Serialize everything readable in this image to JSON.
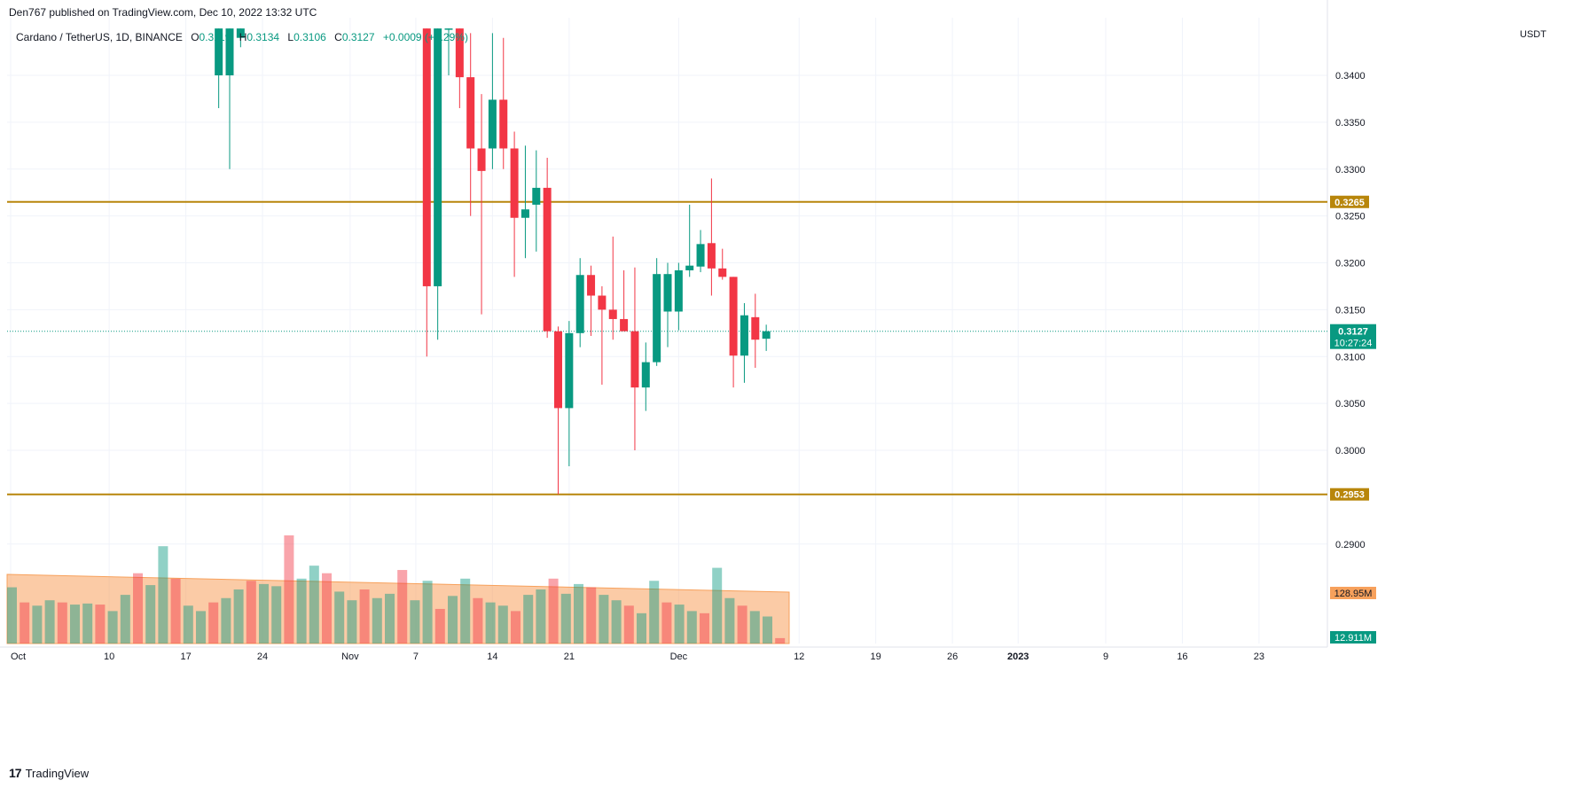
{
  "header": {
    "publisher_text": "Den767 published on TradingView.com, Dec 10, 2022 13:32 UTC"
  },
  "legend": {
    "symbol": "Cardano / TetherUS, 1D, BINANCE",
    "open_label": "O",
    "open": "0.3119",
    "high_label": "H",
    "high": "0.3134",
    "low_label": "L",
    "low": "0.3106",
    "close_label": "C",
    "close": "0.3127",
    "change": "+0.0009 (+0.29%)"
  },
  "footer": {
    "brand": "TradingView"
  },
  "colors": {
    "up": "#089981",
    "down": "#f23645",
    "level": "#b8860b",
    "volume_ma": "#f7a15c",
    "grid": "#f0f3fa",
    "current": "#089981"
  },
  "chart_data": {
    "type": "candlestick",
    "axis_unit": "USDT",
    "y_ticks": [
      "0.3400",
      "0.3350",
      "0.3300",
      "0.3250",
      "0.3200",
      "0.3150",
      "0.3100",
      "0.3050",
      "0.3000",
      "0.2900"
    ],
    "x_ticks": [
      "Oct",
      "10",
      "17",
      "24",
      "Nov",
      "7",
      "14",
      "21",
      "Dec",
      "12",
      "19",
      "26",
      "2023",
      "9",
      "16",
      "23"
    ],
    "ylim": [
      0.285,
      0.344
    ],
    "horizontal_levels": [
      0.3265,
      0.2953
    ],
    "level_labels": [
      "0.3265",
      "0.2953"
    ],
    "current_price": 0.3127,
    "current_price_label": "0.3127",
    "countdown_label": "10:27:24",
    "volume_ma_label": "128.95M",
    "last_volume_label": "12.911M",
    "candles": [
      {
        "date": "2022-10-20",
        "o": 0.34,
        "h": 0.345,
        "l": 0.3365,
        "c": 0.345
      },
      {
        "date": "2022-10-21",
        "o": 0.34,
        "h": 0.345,
        "l": 0.33,
        "c": 0.345
      },
      {
        "date": "2022-10-22",
        "o": 0.344,
        "h": 0.345,
        "l": 0.343,
        "c": 0.345
      },
      {
        "date": "2022-11-08",
        "o": 0.345,
        "h": 0.345,
        "l": 0.31,
        "c": 0.3175
      },
      {
        "date": "2022-11-09",
        "o": 0.3175,
        "h": 0.345,
        "l": 0.3118,
        "c": 0.345
      },
      {
        "date": "2022-11-10",
        "o": 0.345,
        "h": 0.345,
        "l": 0.34,
        "c": 0.345
      },
      {
        "date": "2022-11-11",
        "o": 0.345,
        "h": 0.345,
        "l": 0.3365,
        "c": 0.3398
      },
      {
        "date": "2022-11-12",
        "o": 0.3398,
        "h": 0.3445,
        "l": 0.325,
        "c": 0.3322
      },
      {
        "date": "2022-11-13",
        "o": 0.3322,
        "h": 0.338,
        "l": 0.3145,
        "c": 0.3298
      },
      {
        "date": "2022-11-14",
        "o": 0.3322,
        "h": 0.3445,
        "l": 0.33,
        "c": 0.3374
      },
      {
        "date": "2022-11-15",
        "o": 0.3374,
        "h": 0.344,
        "l": 0.33,
        "c": 0.3322
      },
      {
        "date": "2022-11-16",
        "o": 0.3322,
        "h": 0.334,
        "l": 0.3185,
        "c": 0.3248
      },
      {
        "date": "2022-11-17",
        "o": 0.3248,
        "h": 0.3325,
        "l": 0.3205,
        "c": 0.3257
      },
      {
        "date": "2022-11-18",
        "o": 0.3262,
        "h": 0.332,
        "l": 0.3212,
        "c": 0.328
      },
      {
        "date": "2022-11-19",
        "o": 0.328,
        "h": 0.3312,
        "l": 0.312,
        "c": 0.3127
      },
      {
        "date": "2022-11-20",
        "o": 0.3127,
        "h": 0.3132,
        "l": 0.2953,
        "c": 0.3045
      },
      {
        "date": "2022-11-21",
        "o": 0.3045,
        "h": 0.3138,
        "l": 0.2983,
        "c": 0.3125
      },
      {
        "date": "2022-11-22",
        "o": 0.3125,
        "h": 0.3205,
        "l": 0.311,
        "c": 0.3187
      },
      {
        "date": "2022-11-23",
        "o": 0.3187,
        "h": 0.3197,
        "l": 0.3122,
        "c": 0.3165
      },
      {
        "date": "2022-11-24",
        "o": 0.3165,
        "h": 0.3175,
        "l": 0.307,
        "c": 0.315
      },
      {
        "date": "2022-11-25",
        "o": 0.315,
        "h": 0.3228,
        "l": 0.3118,
        "c": 0.314
      },
      {
        "date": "2022-11-26",
        "o": 0.314,
        "h": 0.3192,
        "l": 0.313,
        "c": 0.3127
      },
      {
        "date": "2022-11-27",
        "o": 0.3127,
        "h": 0.3195,
        "l": 0.3,
        "c": 0.3067
      },
      {
        "date": "2022-11-28",
        "o": 0.3067,
        "h": 0.3115,
        "l": 0.3042,
        "c": 0.3094
      },
      {
        "date": "2022-11-29",
        "o": 0.3094,
        "h": 0.3205,
        "l": 0.309,
        "c": 0.3188
      },
      {
        "date": "2022-11-30",
        "o": 0.3148,
        "h": 0.32,
        "l": 0.311,
        "c": 0.3188
      },
      {
        "date": "2022-12-01",
        "o": 0.3148,
        "h": 0.32,
        "l": 0.3128,
        "c": 0.3192
      },
      {
        "date": "2022-12-02",
        "o": 0.3192,
        "h": 0.3262,
        "l": 0.3185,
        "c": 0.3197
      },
      {
        "date": "2022-12-03",
        "o": 0.3196,
        "h": 0.3235,
        "l": 0.319,
        "c": 0.322
      },
      {
        "date": "2022-12-04",
        "o": 0.3221,
        "h": 0.329,
        "l": 0.3165,
        "c": 0.3194
      },
      {
        "date": "2022-12-05",
        "o": 0.3194,
        "h": 0.3215,
        "l": 0.3182,
        "c": 0.3185
      },
      {
        "date": "2022-12-06",
        "o": 0.3185,
        "h": 0.3185,
        "l": 0.3067,
        "c": 0.3101
      },
      {
        "date": "2022-12-07",
        "o": 0.3101,
        "h": 0.3157,
        "l": 0.3072,
        "c": 0.3144
      },
      {
        "date": "2022-12-08",
        "o": 0.3142,
        "h": 0.3167,
        "l": 0.3088,
        "c": 0.3118
      },
      {
        "date": "2022-12-09",
        "o": 0.3119,
        "h": 0.3134,
        "l": 0.3106,
        "c": 0.3127
      }
    ]
  }
}
